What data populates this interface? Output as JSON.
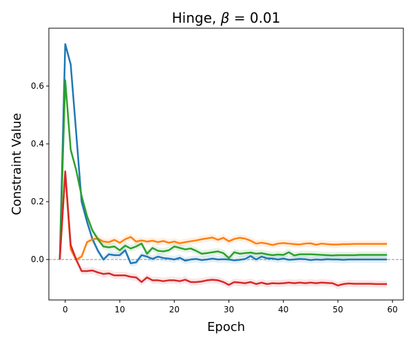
{
  "chart_data": {
    "type": "line",
    "title_prefix": "Hinge, ",
    "title_symbol": "β",
    "title_suffix": " =  0.01",
    "xlabel": "Epoch",
    "ylabel": "Constraint Value",
    "xlim": [
      -3,
      62
    ],
    "ylim": [
      -0.14,
      0.8
    ],
    "xticks": [
      0,
      10,
      20,
      30,
      40,
      50,
      60
    ],
    "yticks": [
      0.0,
      0.2,
      0.4,
      0.6
    ],
    "ytick_labels": [
      "0.0",
      "0.2",
      "0.4",
      "0.6"
    ],
    "grid": false,
    "reference_line": {
      "y": 0,
      "color": "#808080",
      "style": "dashed"
    },
    "x": [
      -1,
      0,
      1,
      2,
      3,
      4,
      5,
      6,
      7,
      8,
      9,
      10,
      11,
      12,
      13,
      14,
      15,
      16,
      17,
      18,
      19,
      20,
      21,
      22,
      23,
      24,
      25,
      26,
      27,
      28,
      29,
      30,
      31,
      32,
      33,
      34,
      35,
      36,
      37,
      38,
      39,
      40,
      41,
      42,
      43,
      44,
      45,
      46,
      47,
      48,
      49,
      50,
      51,
      52,
      53,
      54,
      55,
      56,
      57,
      58,
      59
    ],
    "series": [
      {
        "color": "#1f77b4",
        "values": [
          0.0,
          0.745,
          0.675,
          0.44,
          0.2,
          0.13,
          0.07,
          0.03,
          0.0,
          0.018,
          0.015,
          0.015,
          0.032,
          -0.013,
          -0.01,
          0.015,
          0.01,
          0.002,
          0.01,
          0.005,
          0.003,
          0.0,
          0.006,
          -0.004,
          0.0,
          0.002,
          -0.002,
          0.0,
          0.003,
          0.0,
          0.001,
          0.0,
          -0.003,
          -0.001,
          0.002,
          0.012,
          0.0,
          0.01,
          0.004,
          0.003,
          0.0,
          0.003,
          -0.001,
          0.0,
          0.002,
          0.001,
          -0.002,
          0.0,
          -0.001,
          0.001,
          0.0,
          0.0,
          -0.001,
          0.0,
          0.0,
          0.0,
          0.0,
          0.0,
          0.0,
          0.0,
          0.0
        ]
      },
      {
        "color": "#ff7f0e",
        "values": [
          0.0,
          0.3,
          0.035,
          0.0,
          0.01,
          0.06,
          0.07,
          0.072,
          0.062,
          0.06,
          0.068,
          0.058,
          0.07,
          0.078,
          0.062,
          0.066,
          0.062,
          0.065,
          0.06,
          0.064,
          0.058,
          0.062,
          0.056,
          0.06,
          0.063,
          0.066,
          0.07,
          0.073,
          0.076,
          0.068,
          0.075,
          0.063,
          0.071,
          0.075,
          0.072,
          0.065,
          0.055,
          0.058,
          0.055,
          0.05,
          0.055,
          0.057,
          0.055,
          0.053,
          0.052,
          0.055,
          0.056,
          0.051,
          0.055,
          0.053,
          0.052,
          0.052,
          0.053,
          0.053,
          0.054,
          0.054,
          0.054,
          0.054,
          0.054,
          0.054,
          0.054
        ]
      },
      {
        "color": "#2ca02c",
        "values": [
          0.0,
          0.62,
          0.38,
          0.31,
          0.22,
          0.15,
          0.1,
          0.07,
          0.045,
          0.042,
          0.045,
          0.032,
          0.048,
          0.038,
          0.045,
          0.055,
          0.02,
          0.04,
          0.03,
          0.028,
          0.032,
          0.045,
          0.04,
          0.035,
          0.038,
          0.03,
          0.02,
          0.022,
          0.025,
          0.028,
          0.022,
          0.005,
          0.025,
          0.02,
          0.022,
          0.024,
          0.02,
          0.022,
          0.018,
          0.015,
          0.017,
          0.016,
          0.025,
          0.014,
          0.018,
          0.018,
          0.018,
          0.017,
          0.016,
          0.015,
          0.014,
          0.015,
          0.015,
          0.015,
          0.015,
          0.016,
          0.016,
          0.016,
          0.016,
          0.016,
          0.016
        ]
      },
      {
        "color": "#d62728",
        "values": [
          0.0,
          0.305,
          0.05,
          0.0,
          -0.04,
          -0.04,
          -0.038,
          -0.045,
          -0.05,
          -0.048,
          -0.055,
          -0.055,
          -0.055,
          -0.06,
          -0.062,
          -0.078,
          -0.062,
          -0.072,
          -0.072,
          -0.075,
          -0.072,
          -0.072,
          -0.075,
          -0.07,
          -0.078,
          -0.078,
          -0.076,
          -0.072,
          -0.07,
          -0.072,
          -0.078,
          -0.088,
          -0.078,
          -0.08,
          -0.082,
          -0.078,
          -0.085,
          -0.08,
          -0.085,
          -0.082,
          -0.083,
          -0.082,
          -0.08,
          -0.082,
          -0.08,
          -0.082,
          -0.08,
          -0.082,
          -0.08,
          -0.081,
          -0.082,
          -0.09,
          -0.085,
          -0.083,
          -0.084,
          -0.084,
          -0.084,
          -0.084,
          -0.085,
          -0.085,
          -0.085
        ]
      }
    ]
  }
}
